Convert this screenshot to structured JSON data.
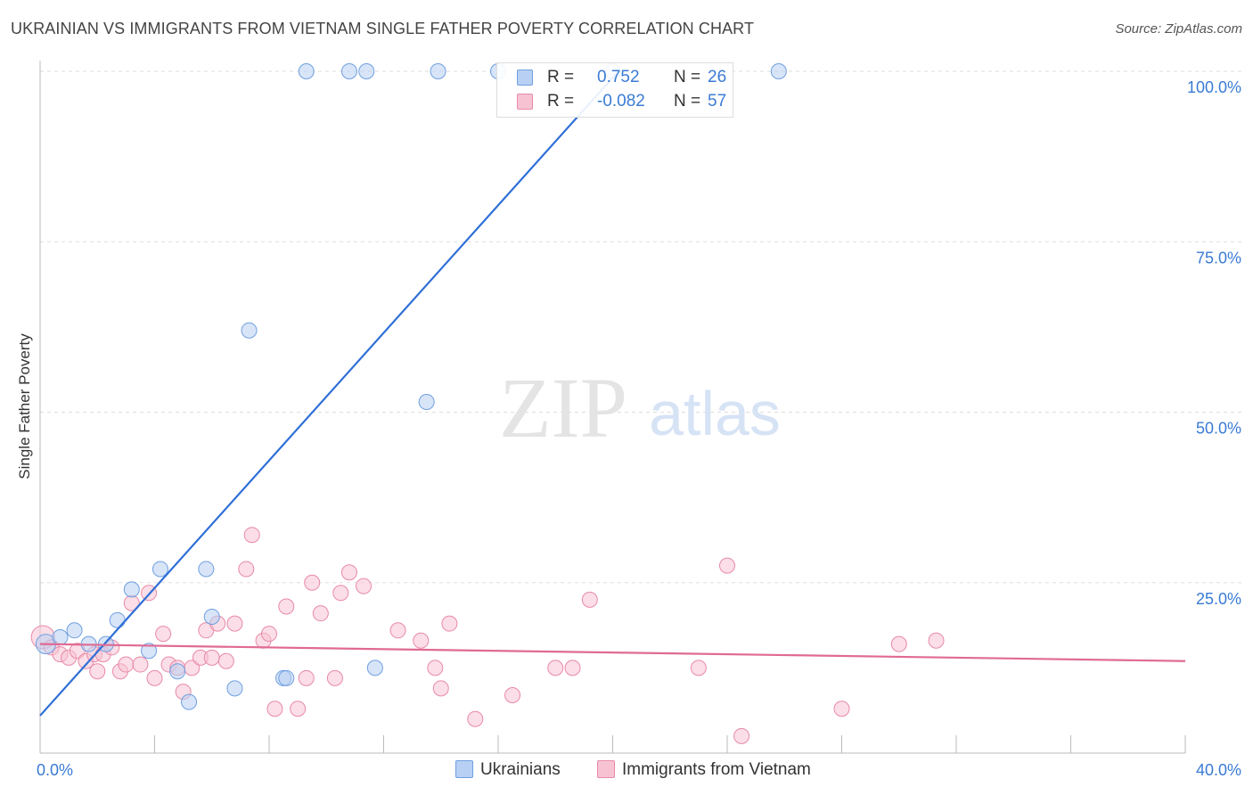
{
  "title": "UKRAINIAN VS IMMIGRANTS FROM VIETNAM SINGLE FATHER POVERTY CORRELATION CHART",
  "source": "Source: ZipAtlas.com",
  "watermark": {
    "zip": "ZIP",
    "atlas": "atlas"
  },
  "legend": {
    "rows": [
      {
        "r_label": "R =",
        "r_value": "0.752",
        "n_label": "N =",
        "n_value": "26"
      },
      {
        "r_label": "R =",
        "r_value": "-0.082",
        "n_label": "N =",
        "n_value": "57"
      }
    ]
  },
  "colors": {
    "blue_fill": "#b8d0f3",
    "blue_stroke": "#6f9fe0",
    "blue_line": "#2f6fd6",
    "pink_fill": "#f7c3d3",
    "pink_stroke": "#e88aa8",
    "pink_line": "#e06a94",
    "tick_text": "#3a7bd5",
    "grid": "#dddddd"
  },
  "chart_data": {
    "type": "scatter",
    "title": "UKRAINIAN VS IMMIGRANTS FROM VIETNAM SINGLE FATHER POVERTY CORRELATION CHART",
    "xlabel": "",
    "ylabel": "Single Father Poverty",
    "xlim": [
      0,
      40
    ],
    "ylim": [
      0,
      100
    ],
    "x_tick_labels": [
      "0.0%",
      "40.0%"
    ],
    "y_tick_labels": [
      "25.0%",
      "50.0%",
      "75.0%",
      "100.0%"
    ],
    "y_ticks": [
      25,
      50,
      75,
      100
    ],
    "grid": true,
    "legend_position": "bottom",
    "series": [
      {
        "name": "Ukrainians",
        "color": "#6f9fe0",
        "points": [
          [
            0.2,
            16.0
          ],
          [
            0.7,
            17.0
          ],
          [
            1.2,
            18.0
          ],
          [
            1.7,
            16.0
          ],
          [
            2.3,
            16.0
          ],
          [
            2.7,
            19.5
          ],
          [
            3.2,
            24.0
          ],
          [
            3.8,
            15.0
          ],
          [
            4.2,
            27.0
          ],
          [
            4.8,
            12.0
          ],
          [
            5.2,
            7.5
          ],
          [
            5.8,
            27.0
          ],
          [
            6.0,
            20.0
          ],
          [
            6.8,
            9.5
          ],
          [
            7.3,
            62.0
          ],
          [
            8.5,
            11.0
          ],
          [
            8.6,
            11.0
          ],
          [
            9.3,
            100.0
          ],
          [
            10.8,
            100.0
          ],
          [
            11.4,
            100.0
          ],
          [
            11.7,
            12.5
          ],
          [
            13.5,
            51.5
          ],
          [
            13.9,
            100.0
          ],
          [
            16.0,
            100.0
          ],
          [
            20.0,
            100.0
          ],
          [
            25.8,
            100.0
          ]
        ],
        "trend": {
          "x": [
            0,
            20.2
          ],
          "y": [
            5.5,
            100
          ]
        }
      },
      {
        "name": "Immigrants from Vietnam",
        "color": "#e88aa8",
        "points": [
          [
            0.1,
            17.0
          ],
          [
            0.4,
            15.5
          ],
          [
            0.7,
            14.5
          ],
          [
            1.0,
            14.0
          ],
          [
            1.3,
            15.0
          ],
          [
            1.6,
            13.5
          ],
          [
            1.9,
            14.5
          ],
          [
            2.0,
            12.0
          ],
          [
            2.2,
            14.5
          ],
          [
            2.5,
            15.5
          ],
          [
            2.8,
            12.0
          ],
          [
            3.0,
            13.0
          ],
          [
            3.2,
            22.0
          ],
          [
            3.5,
            13.0
          ],
          [
            3.8,
            23.5
          ],
          [
            4.0,
            11.0
          ],
          [
            4.3,
            17.5
          ],
          [
            4.5,
            13.0
          ],
          [
            4.8,
            12.5
          ],
          [
            5.0,
            9.0
          ],
          [
            5.3,
            12.5
          ],
          [
            5.6,
            14.0
          ],
          [
            5.8,
            18.0
          ],
          [
            6.0,
            14.0
          ],
          [
            6.2,
            19.0
          ],
          [
            6.5,
            13.5
          ],
          [
            6.8,
            19.0
          ],
          [
            7.2,
            27.0
          ],
          [
            7.4,
            32.0
          ],
          [
            7.8,
            16.5
          ],
          [
            8.0,
            17.5
          ],
          [
            8.2,
            6.5
          ],
          [
            8.6,
            21.5
          ],
          [
            9.0,
            6.5
          ],
          [
            9.3,
            11.0
          ],
          [
            9.5,
            25.0
          ],
          [
            9.8,
            20.5
          ],
          [
            10.3,
            11.0
          ],
          [
            10.5,
            23.5
          ],
          [
            10.8,
            26.5
          ],
          [
            11.3,
            24.5
          ],
          [
            12.5,
            18.0
          ],
          [
            13.3,
            16.5
          ],
          [
            13.8,
            12.5
          ],
          [
            14.0,
            9.5
          ],
          [
            14.3,
            19.0
          ],
          [
            15.2,
            5.0
          ],
          [
            16.5,
            8.5
          ],
          [
            18.0,
            12.5
          ],
          [
            18.6,
            12.5
          ],
          [
            19.2,
            22.5
          ],
          [
            23.0,
            12.5
          ],
          [
            24.0,
            27.5
          ],
          [
            24.5,
            2.5
          ],
          [
            28.0,
            6.5
          ],
          [
            30.0,
            16.0
          ],
          [
            31.3,
            16.5
          ]
        ],
        "trend": {
          "x": [
            0,
            40
          ],
          "y": [
            16.0,
            13.5
          ]
        }
      }
    ]
  }
}
